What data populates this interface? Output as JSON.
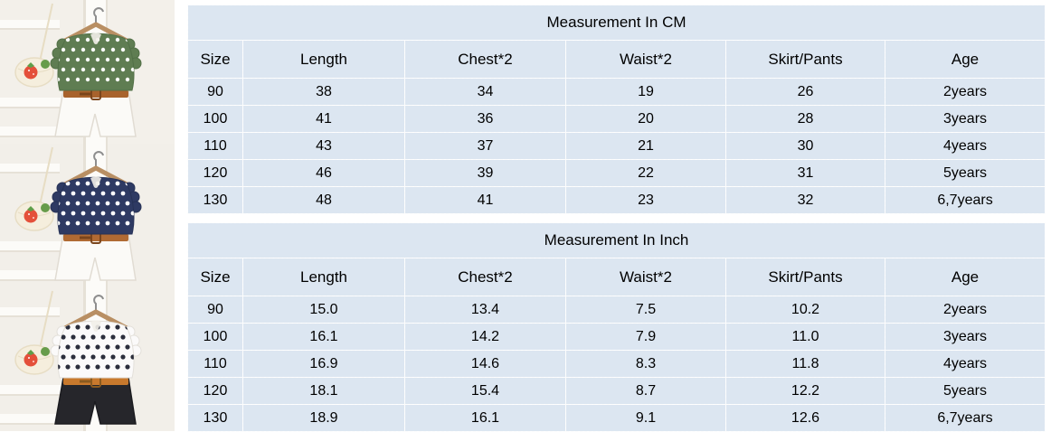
{
  "style": {
    "cell_bg": "#dce6f1",
    "cell_border": "#fdfdfd",
    "text_color": "#000000",
    "page_bg": "#ffffff"
  },
  "tables": [
    {
      "title": "Measurement In CM",
      "headers": [
        "Size",
        "Length",
        "Chest*2",
        "Waist*2",
        "Skirt/Pants",
        "Age"
      ],
      "rows": [
        [
          "90",
          "38",
          "34",
          "19",
          "26",
          "2years"
        ],
        [
          "100",
          "41",
          "36",
          "20",
          "28",
          "3years"
        ],
        [
          "110",
          "43",
          "37",
          "21",
          "30",
          "4years"
        ],
        [
          "120",
          "46",
          "39",
          "22",
          "31",
          "5years"
        ],
        [
          "130",
          "48",
          "41",
          "23",
          "32",
          "6,7years"
        ]
      ]
    },
    {
      "title": "Measurement In Inch",
      "headers": [
        "Size",
        "Length",
        "Chest*2",
        "Waist*2",
        "Skirt/Pants",
        "Age"
      ],
      "rows": [
        [
          "90",
          "15.0",
          "13.4",
          "7.5",
          "10.2",
          "2years"
        ],
        [
          "100",
          "16.1",
          "14.2",
          "7.9",
          "11.0",
          "3years"
        ],
        [
          "110",
          "16.9",
          "14.6",
          "8.3",
          "11.8",
          "4years"
        ],
        [
          "120",
          "18.1",
          "15.4",
          "8.7",
          "12.2",
          "5years"
        ],
        [
          "130",
          "18.9",
          "16.1",
          "9.1",
          "12.6",
          "6,7years"
        ]
      ]
    }
  ],
  "photos": [
    {
      "name": "outfit-green-polkadot-top-white-shorts",
      "bg": "#f3f0ea",
      "ladder": "#fcfbf8",
      "ladder_shadow": "#e6e1d7",
      "top": "#5f7d52",
      "top_stroke": "#527047",
      "dot": "#ffffff",
      "dot_r": 2.2,
      "shorts": "#fbfaf7",
      "shorts_stroke": "#e1dcd3",
      "belt": "#a8622c",
      "buckle": "#7a451c",
      "hanger": "#b98f63",
      "bag": "#f5eedd",
      "bag_stroke": "#e7ddc4",
      "strawberry": "#e4503a",
      "leaf": "#5f9e49",
      "pom": "#679c4a"
    },
    {
      "name": "outfit-navy-dotted-top-white-shorts",
      "bg": "#f2efe9",
      "ladder": "#fcfbf8",
      "ladder_shadow": "#e6e1d7",
      "top": "#2e3a63",
      "top_stroke": "#273256",
      "dot": "#ffffff",
      "dot_r": 2.4,
      "shorts": "#fbfaf7",
      "shorts_stroke": "#e1dcd3",
      "belt": "#b06a33",
      "buckle": "#7a451c",
      "hanger": "#b98f63",
      "bag": "#f5eedd",
      "bag_stroke": "#e7ddc4",
      "strawberry": "#e4503a",
      "leaf": "#5f9e49",
      "pom": "#679c4a"
    },
    {
      "name": "outfit-white-dotted-top-black-shorts",
      "bg": "#f2efe9",
      "ladder": "#fcfbf8",
      "ladder_shadow": "#e6e1d7",
      "top": "#fbfafa",
      "top_stroke": "#e3e0da",
      "dot": "#2b2e3c",
      "dot_r": 2.6,
      "shorts": "#26262b",
      "shorts_stroke": "#1c1c20",
      "belt": "#c8792d",
      "buckle": "#8a5a20",
      "hanger": "#b98f63",
      "bag": "#f5eedd",
      "bag_stroke": "#e7ddc4",
      "strawberry": "#e4503a",
      "leaf": "#5f9e49",
      "pom": "#679c4a"
    }
  ]
}
